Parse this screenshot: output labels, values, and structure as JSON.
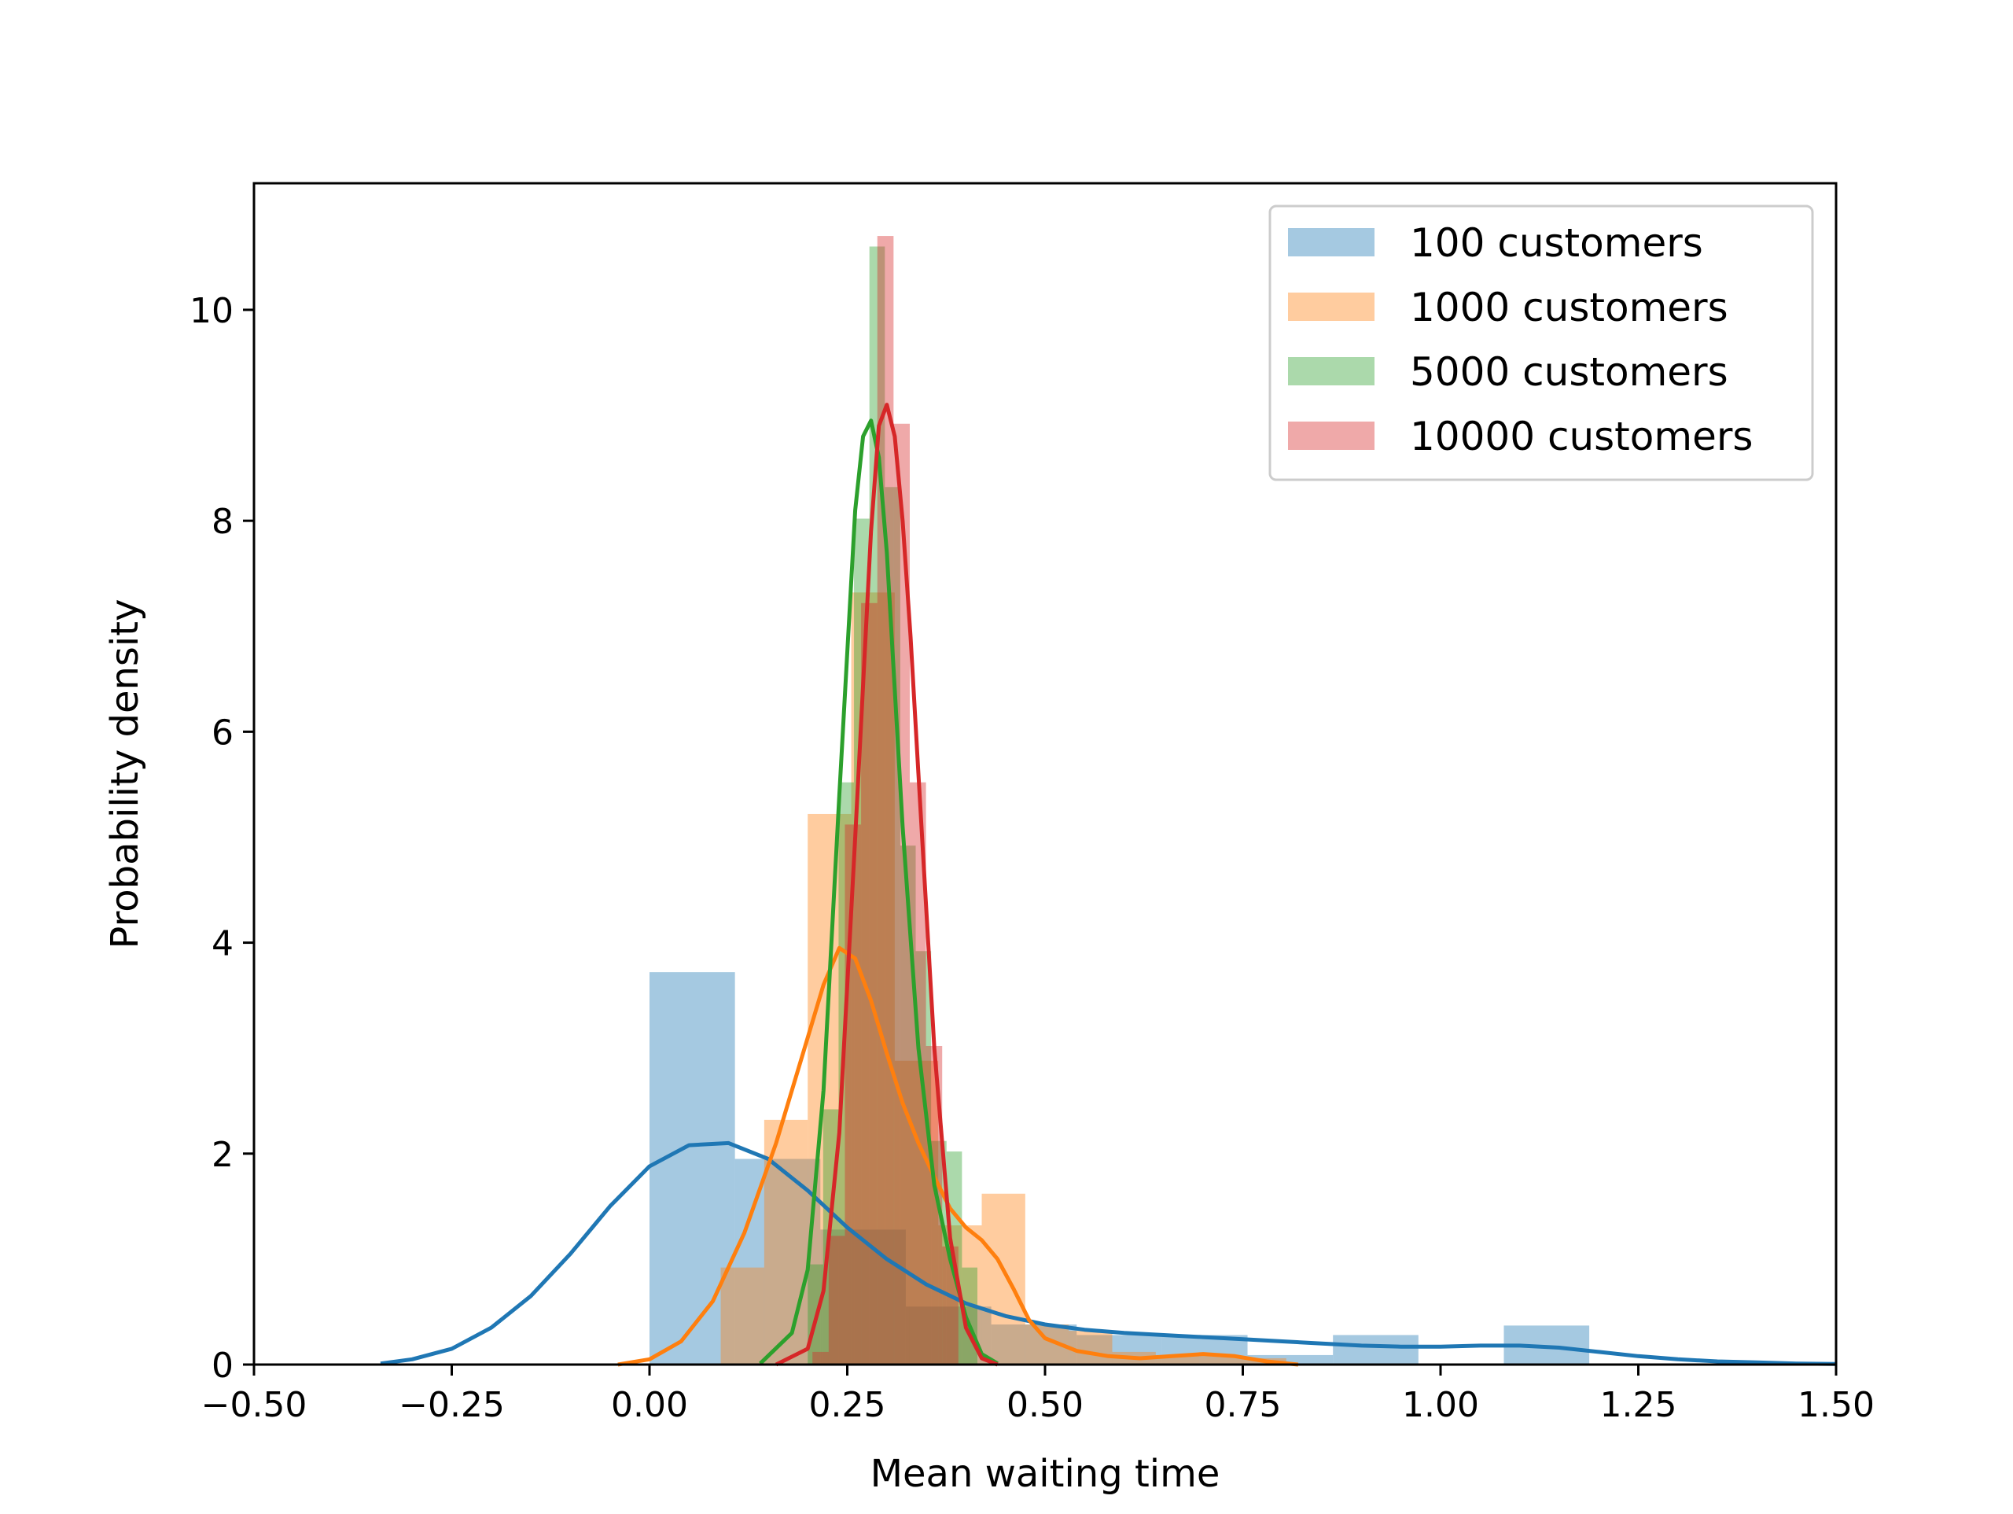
{
  "chart_data": {
    "type": "histogram+kde",
    "xlabel": "Mean waiting time",
    "ylabel": "Probability density",
    "xlim": [
      -0.5,
      1.5
    ],
    "ylim": [
      0,
      11.2
    ],
    "xticks": [
      -0.5,
      -0.25,
      0.0,
      0.25,
      0.5,
      0.75,
      1.0,
      1.25,
      1.5
    ],
    "xtick_labels": [
      "−0.50",
      "−0.25",
      "0.00",
      "0.25",
      "0.50",
      "0.75",
      "1.00",
      "1.25",
      "1.50"
    ],
    "yticks": [
      0,
      2,
      4,
      6,
      8,
      10
    ],
    "ytick_labels": [
      "0",
      "2",
      "4",
      "6",
      "8",
      "10"
    ],
    "grid": false,
    "legend_position": "top-right",
    "series": [
      {
        "name": "100 customers",
        "color": "#1f77b4",
        "hist": {
          "edges": [
            0.0,
            0.108,
            0.216,
            0.324,
            0.432,
            0.54,
            0.648,
            0.756,
            0.864,
            0.972,
            1.08,
            1.188
          ],
          "heights": [
            3.72,
            1.95,
            1.28,
            0.55,
            0.38,
            0.28,
            0.28,
            0.09,
            0.28,
            0.0,
            0.37
          ]
        },
        "kde": {
          "x": [
            -0.34,
            -0.3,
            -0.25,
            -0.2,
            -0.15,
            -0.1,
            -0.05,
            0.0,
            0.05,
            0.1,
            0.15,
            0.2,
            0.25,
            0.3,
            0.35,
            0.4,
            0.45,
            0.5,
            0.55,
            0.6,
            0.65,
            0.7,
            0.75,
            0.8,
            0.85,
            0.9,
            0.95,
            1.0,
            1.05,
            1.1,
            1.15,
            1.2,
            1.25,
            1.3,
            1.35,
            1.4,
            1.45,
            1.5
          ],
          "y": [
            0.01,
            0.05,
            0.15,
            0.35,
            0.65,
            1.05,
            1.5,
            1.88,
            2.08,
            2.1,
            1.95,
            1.65,
            1.3,
            1.0,
            0.76,
            0.58,
            0.46,
            0.38,
            0.33,
            0.3,
            0.28,
            0.26,
            0.24,
            0.22,
            0.2,
            0.18,
            0.17,
            0.17,
            0.18,
            0.18,
            0.16,
            0.12,
            0.08,
            0.05,
            0.03,
            0.02,
            0.01,
            0.005
          ]
        }
      },
      {
        "name": "1000 customers",
        "color": "#ff7f0e",
        "hist": {
          "edges": [
            0.09,
            0.145,
            0.2,
            0.255,
            0.31,
            0.365,
            0.42,
            0.475,
            0.53,
            0.585,
            0.64,
            0.695,
            0.75,
            0.805
          ],
          "heights": [
            0.92,
            2.32,
            5.22,
            7.32,
            2.88,
            1.32,
            1.62,
            0.38,
            0.32,
            0.12,
            0.08,
            0.08,
            0.06
          ]
        },
        "kde": {
          "x": [
            -0.04,
            0.0,
            0.04,
            0.08,
            0.12,
            0.16,
            0.2,
            0.22,
            0.24,
            0.26,
            0.28,
            0.3,
            0.32,
            0.34,
            0.36,
            0.38,
            0.4,
            0.42,
            0.44,
            0.46,
            0.48,
            0.5,
            0.54,
            0.58,
            0.62,
            0.66,
            0.7,
            0.74,
            0.78,
            0.82
          ],
          "y": [
            0.0,
            0.05,
            0.22,
            0.6,
            1.25,
            2.1,
            3.1,
            3.6,
            3.95,
            3.85,
            3.45,
            2.95,
            2.48,
            2.1,
            1.78,
            1.48,
            1.3,
            1.18,
            1.0,
            0.72,
            0.42,
            0.25,
            0.13,
            0.08,
            0.06,
            0.08,
            0.1,
            0.08,
            0.03,
            0.0
          ]
        }
      },
      {
        "name": "5000 customers",
        "color": "#2ca02c",
        "hist": {
          "edges": [
            0.2,
            0.2195,
            0.239,
            0.2585,
            0.278,
            0.2975,
            0.317,
            0.3365,
            0.356,
            0.3755,
            0.395,
            0.4145
          ],
          "heights": [
            0.95,
            2.42,
            5.52,
            8.02,
            10.6,
            8.32,
            4.92,
            3.92,
            2.12,
            2.02,
            0.92
          ]
        },
        "kde": {
          "x": [
            0.14,
            0.18,
            0.2,
            0.22,
            0.24,
            0.26,
            0.27,
            0.28,
            0.29,
            0.3,
            0.31,
            0.32,
            0.34,
            0.36,
            0.38,
            0.4,
            0.42,
            0.44
          ],
          "y": [
            0.01,
            0.3,
            0.9,
            2.6,
            5.4,
            8.1,
            8.8,
            8.95,
            8.6,
            7.7,
            6.4,
            5.1,
            3.0,
            1.7,
            1.0,
            0.45,
            0.1,
            0.01
          ]
        }
      },
      {
        "name": "10000 customers",
        "color": "#d62728",
        "hist": {
          "edges": [
            0.206,
            0.2265,
            0.247,
            0.2675,
            0.288,
            0.3085,
            0.329,
            0.3495,
            0.37,
            0.3905
          ],
          "heights": [
            0.12,
            1.22,
            5.12,
            7.22,
            10.7,
            8.92,
            5.52,
            3.02,
            1.12
          ]
        },
        "kde": {
          "x": [
            0.16,
            0.2,
            0.22,
            0.24,
            0.26,
            0.28,
            0.29,
            0.3,
            0.31,
            0.32,
            0.33,
            0.34,
            0.36,
            0.38,
            0.4,
            0.42,
            0.44
          ],
          "y": [
            0.0,
            0.15,
            0.7,
            2.2,
            5.0,
            7.9,
            8.9,
            9.1,
            8.8,
            8.0,
            6.9,
            5.6,
            3.0,
            1.2,
            0.35,
            0.06,
            0.0
          ]
        }
      }
    ]
  }
}
